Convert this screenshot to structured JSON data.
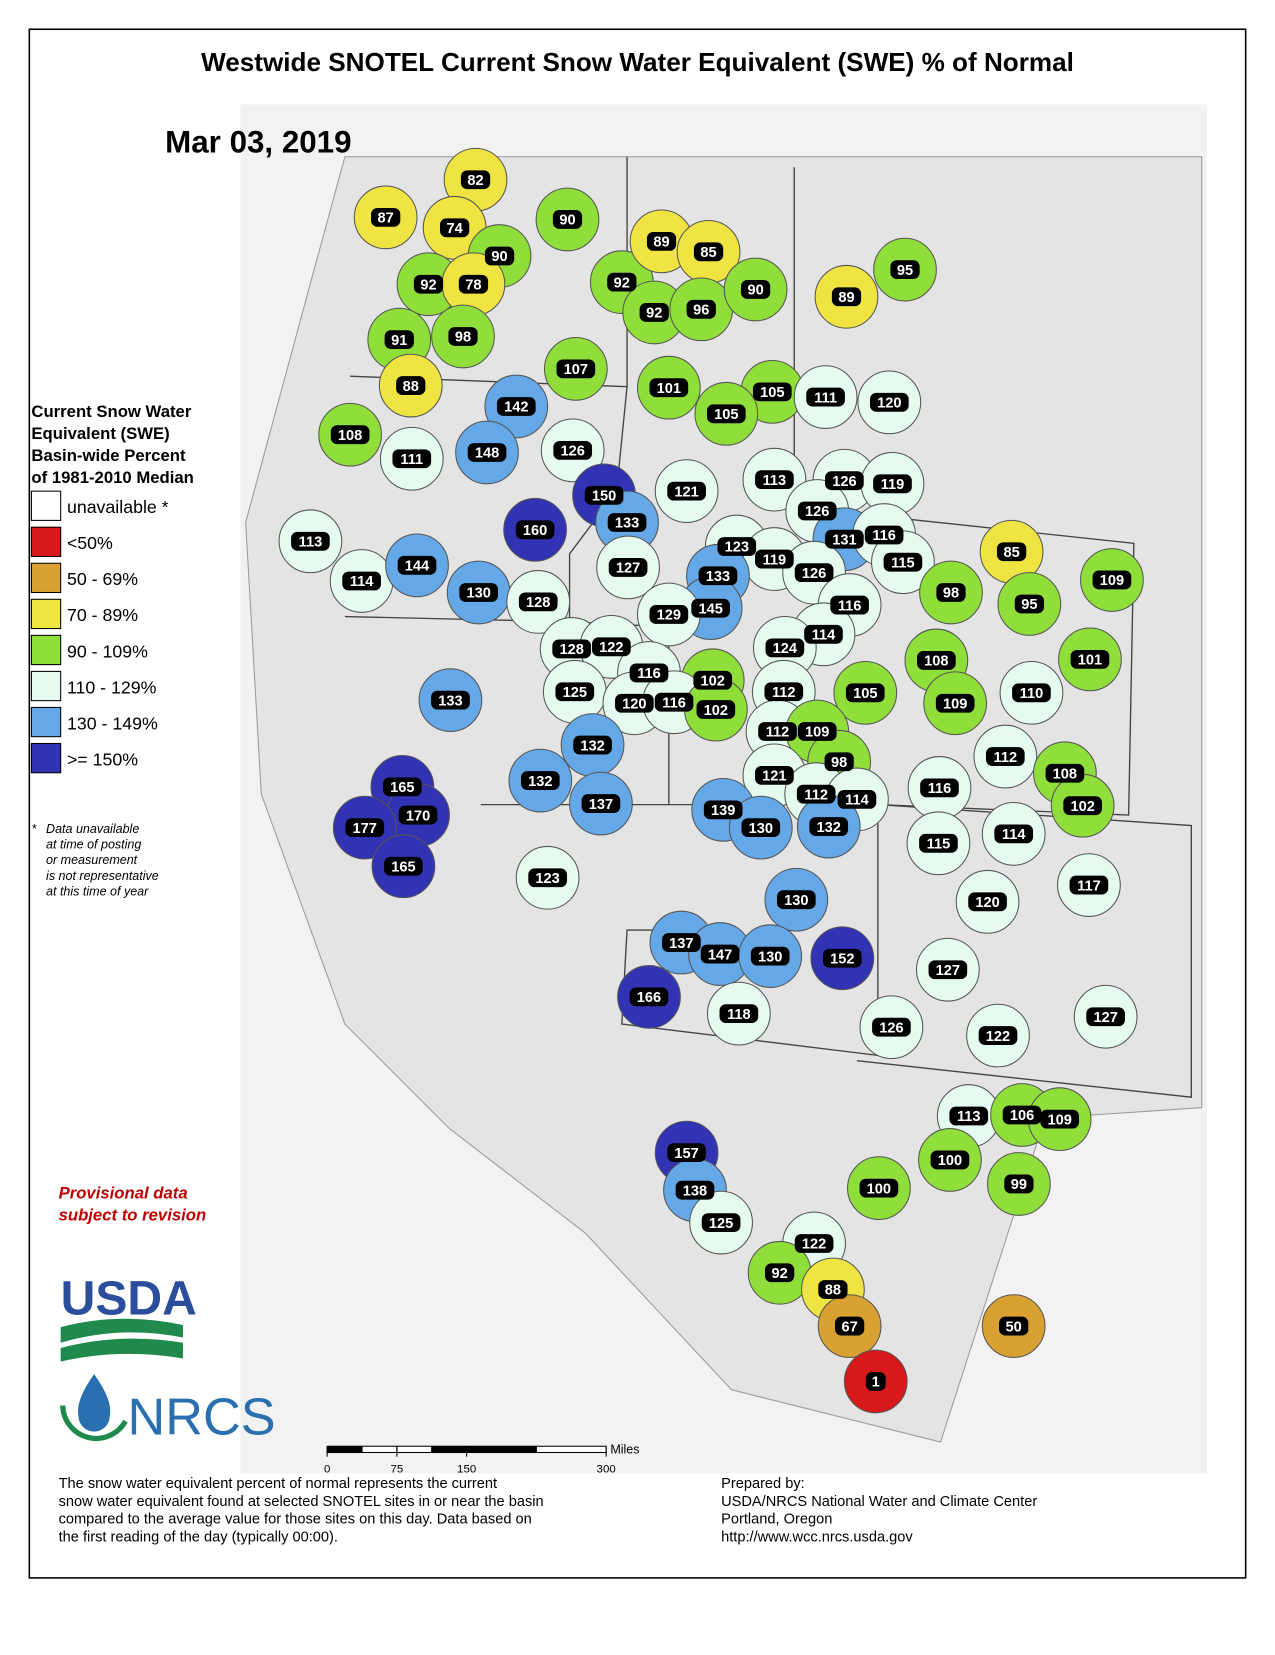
{
  "header": {
    "title": "Westwide SNOTEL Current Snow Water Equivalent (SWE) % of Normal",
    "date": "Mar 03, 2019"
  },
  "legend": {
    "title_lines": [
      "Current Snow Water",
      "Equivalent (SWE)",
      "Basin-wide Percent",
      "of 1981-2010 Median"
    ],
    "items": [
      {
        "label": "unavailable *",
        "color": "#ffffff"
      },
      {
        "label": "<50%",
        "color": "#d7191c"
      },
      {
        "label": "50 - 69%",
        "color": "#d9a032"
      },
      {
        "label": "70 - 89%",
        "color": "#f0e442"
      },
      {
        "label": "90 - 109%",
        "color": "#8fde3a"
      },
      {
        "label": "110 - 129%",
        "color": "#e6fbef"
      },
      {
        "label": "130 - 149%",
        "color": "#64a8e8"
      },
      {
        "label": ">= 150%",
        "color": "#3232b4"
      }
    ]
  },
  "footnote": {
    "marker": "*",
    "lines": [
      "Data unavailable",
      "at time of posting",
      "or measurement",
      "is not representative",
      "at this time of year"
    ]
  },
  "provisional": [
    "Provisional data",
    "subject to revision"
  ],
  "logos": {
    "usda": "USDA",
    "nrcs": "NRCS"
  },
  "scale_bar": {
    "ticks": [
      0,
      75,
      150,
      300
    ],
    "unit": "Miles"
  },
  "description": [
    "The snow water equivalent percent of normal represents the current",
    "snow water equivalent found at selected SNOTEL sites in or near the basin",
    "compared to the average value for those sites on this day. Data based on",
    "the first reading of the day (typically 00:00)."
  ],
  "credit": [
    "Prepared by:",
    "USDA/NRCS National Water and Climate Center",
    "Portland, Oregon",
    "http://www.wcc.nrcs.usda.gov"
  ],
  "basins": [
    87,
    82,
    74,
    90,
    90,
    92,
    78,
    91,
    98,
    92,
    89,
    85,
    92,
    96,
    90,
    89,
    95,
    107,
    88,
    101,
    105,
    105,
    111,
    120,
    108,
    142,
    148,
    126,
    111,
    150,
    121,
    113,
    126,
    119,
    160,
    133,
    126,
    131,
    116,
    115,
    113,
    114,
    144,
    130,
    128,
    127,
    123,
    119,
    126,
    133,
    145,
    129,
    85,
    98,
    95,
    109,
    116,
    114,
    124,
    128,
    122,
    116,
    102,
    108,
    101,
    133,
    125,
    120,
    116,
    102,
    112,
    105,
    109,
    110,
    112,
    109,
    98,
    112,
    132,
    121,
    112,
    114,
    116,
    108,
    102,
    132,
    137,
    139,
    130,
    132,
    165,
    170,
    177,
    165,
    114,
    115,
    117,
    120,
    123,
    130,
    137,
    147,
    130,
    152,
    127,
    166,
    118,
    126,
    122,
    127,
    113,
    106,
    109,
    157,
    100,
    138,
    100,
    99,
    125,
    122,
    92,
    88,
    67,
    50,
    1
  ]
}
